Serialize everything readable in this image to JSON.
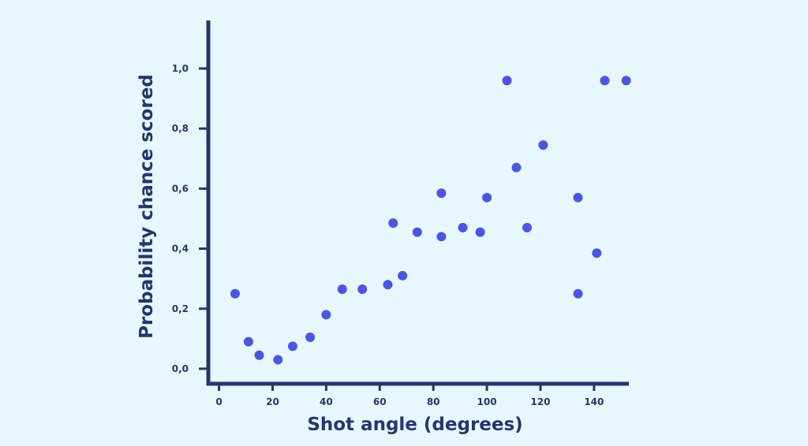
{
  "chart_data": {
    "type": "scatter",
    "xlabel": "Shot angle (degrees)",
    "ylabel": "Probability chance scored",
    "xlim": [
      -4,
      153
    ],
    "ylim": [
      -0.05,
      1.16
    ],
    "x_ticks": [
      "0",
      "20",
      "40",
      "60",
      "80",
      "100",
      "120",
      "140"
    ],
    "y_ticks": [
      "0,0",
      "0,2",
      "0,4",
      "0,6",
      "0,8",
      "1,0"
    ],
    "grid": false,
    "legend": "none",
    "colors": {
      "point": "#4a55e8",
      "axis": "#253571",
      "background": "#e8f7fd"
    },
    "points": [
      {
        "x": 6,
        "y": 0.25
      },
      {
        "x": 11,
        "y": 0.09
      },
      {
        "x": 15,
        "y": 0.045
      },
      {
        "x": 22,
        "y": 0.03
      },
      {
        "x": 27.5,
        "y": 0.075
      },
      {
        "x": 34,
        "y": 0.105
      },
      {
        "x": 40,
        "y": 0.18
      },
      {
        "x": 46,
        "y": 0.265
      },
      {
        "x": 53.5,
        "y": 0.265
      },
      {
        "x": 63,
        "y": 0.28
      },
      {
        "x": 65,
        "y": 0.485
      },
      {
        "x": 68.5,
        "y": 0.31
      },
      {
        "x": 74,
        "y": 0.455
      },
      {
        "x": 83,
        "y": 0.44
      },
      {
        "x": 83,
        "y": 0.585
      },
      {
        "x": 91,
        "y": 0.47
      },
      {
        "x": 97.5,
        "y": 0.455
      },
      {
        "x": 100,
        "y": 0.57
      },
      {
        "x": 107.5,
        "y": 0.96
      },
      {
        "x": 111,
        "y": 0.67
      },
      {
        "x": 115,
        "y": 0.47
      },
      {
        "x": 121,
        "y": 0.745
      },
      {
        "x": 134,
        "y": 0.25
      },
      {
        "x": 134,
        "y": 0.57
      },
      {
        "x": 141,
        "y": 0.385
      },
      {
        "x": 144,
        "y": 0.96
      },
      {
        "x": 152,
        "y": 0.96
      }
    ]
  }
}
